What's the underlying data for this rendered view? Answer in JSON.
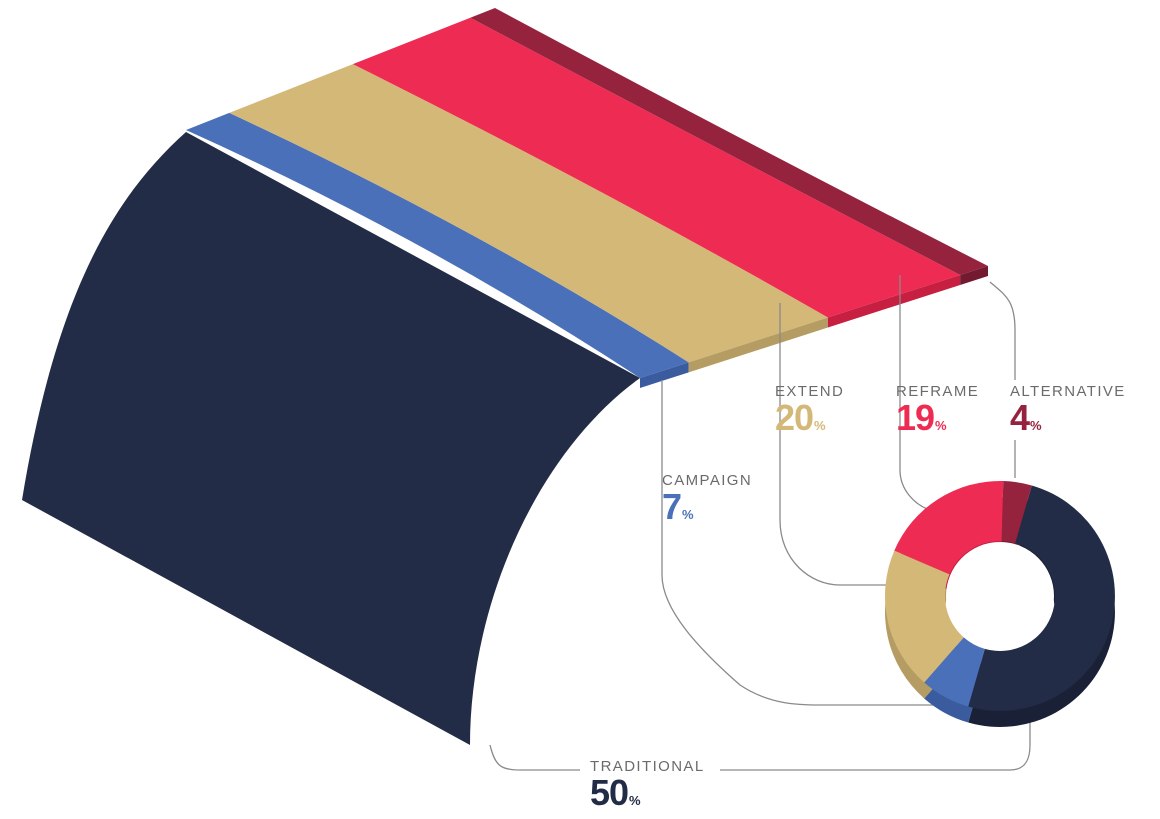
{
  "chart_data": {
    "type": "pie",
    "style": "3d-arc-and-donut",
    "categories": [
      "TRADITIONAL",
      "CAMPAIGN",
      "EXTEND",
      "REFRAME",
      "ALTERNATIVE"
    ],
    "values": [
      50,
      7,
      20,
      19,
      4
    ],
    "unit": "%",
    "colors": [
      "#232c46",
      "#4a70b9",
      "#d4b877",
      "#ee2c53",
      "#96233e"
    ],
    "side_colors": [
      "#1a2137",
      "#3a5c9e",
      "#b59c62",
      "#c71f41",
      "#731a30"
    ],
    "labels": [
      {
        "name": "TRADITIONAL",
        "value": "50",
        "suffix": "%"
      },
      {
        "name": "CAMPAIGN",
        "value": "7",
        "suffix": "%"
      },
      {
        "name": "EXTEND",
        "value": "20",
        "suffix": "%"
      },
      {
        "name": "REFRAME",
        "value": "19",
        "suffix": "%"
      },
      {
        "name": "ALTERNATIVE",
        "value": "4",
        "suffix": "%"
      }
    ],
    "legend": "none",
    "grid": false
  }
}
